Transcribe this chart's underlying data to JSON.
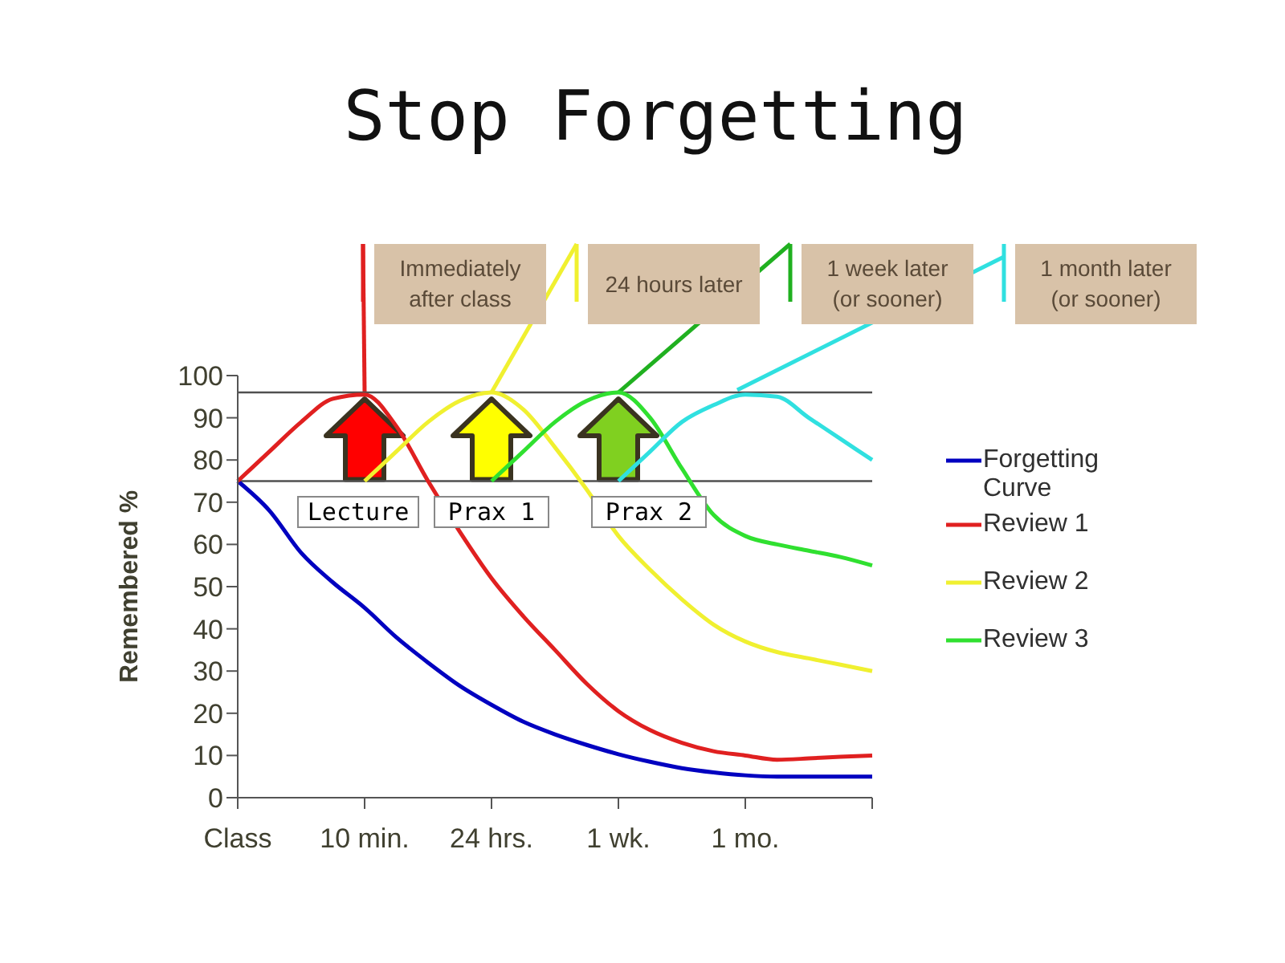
{
  "chart_data": {
    "type": "line",
    "title": "Stop Forgetting",
    "ylabel": "Remembered %",
    "categories": [
      "Class",
      null,
      null,
      null,
      "10 min.",
      null,
      null,
      null,
      "24 hrs.",
      null,
      null,
      null,
      "1 wk.",
      null,
      null,
      null,
      "1 mo.",
      null,
      null,
      null,
      null
    ],
    "ylim": [
      0,
      100
    ],
    "yticks": [
      0,
      10,
      20,
      30,
      40,
      50,
      60,
      70,
      80,
      90,
      100
    ],
    "grid": false,
    "legend": "right",
    "marker": "none",
    "line_style": "solid",
    "ref_lines": [
      {
        "axis": "y",
        "value": 96,
        "color": "#505050"
      },
      {
        "axis": "y",
        "value": 75,
        "color": "#505050"
      }
    ],
    "series": [
      {
        "name": "Forgetting Curve",
        "color": "#0000c0",
        "values": [
          75,
          68,
          58,
          51,
          45,
          38,
          32,
          26.5,
          22,
          18,
          15,
          12.5,
          10.3,
          8.5,
          7,
          6,
          5.3,
          5,
          5,
          5,
          5
        ]
      },
      {
        "name": "Review 1",
        "color": "#e02020",
        "values": [
          75,
          82,
          89,
          94.5,
          95.5,
          88,
          75,
          63,
          52,
          43,
          35,
          27,
          20.5,
          16,
          13,
          11,
          10,
          9,
          9.3,
          9.7,
          10
        ]
      },
      {
        "name": "Review 2",
        "color": "#f0f030",
        "values": [
          null,
          null,
          null,
          null,
          75,
          82,
          89,
          94,
          96,
          92,
          83,
          73,
          62,
          54,
          47,
          41,
          37,
          34.5,
          33,
          31.5,
          30
        ]
      },
      {
        "name": "Review 3",
        "color": "#30e030",
        "values": [
          null,
          null,
          null,
          null,
          null,
          null,
          null,
          null,
          75,
          82,
          89,
          94,
          96,
          90,
          78,
          67,
          62,
          60,
          58.5,
          57,
          55
        ]
      },
      {
        "color": "#30e0e0",
        "values": [
          null,
          null,
          null,
          null,
          null,
          null,
          null,
          null,
          null,
          null,
          null,
          null,
          75,
          82,
          89,
          93,
          95.5,
          95,
          90,
          85,
          80
        ]
      }
    ],
    "annotations": [
      "Immediately after class",
      "24 hours later",
      "1 week later (or sooner)",
      "1 month later (or sooner)",
      {
        "text": "Lecture",
        "x": "10 min.",
        "y": 75
      },
      {
        "text": "Prax 1",
        "x": "24 hrs.",
        "y": 75
      },
      {
        "text": "Prax 2",
        "x": "1 wk.",
        "y": 75
      }
    ]
  }
}
